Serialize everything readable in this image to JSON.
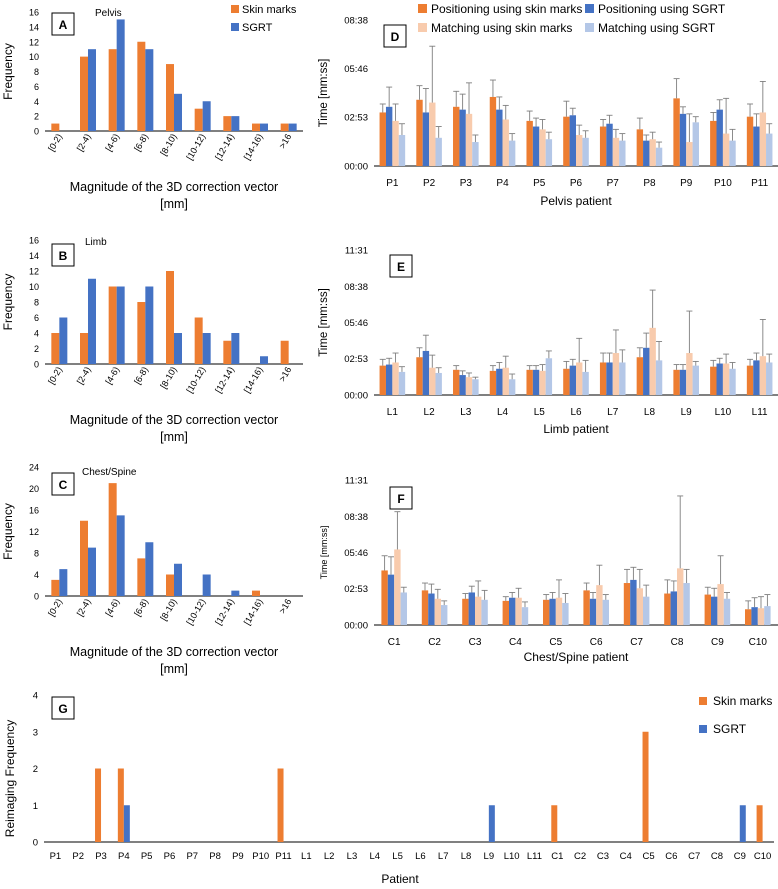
{
  "colors": {
    "orange": "#ED7D31",
    "blue": "#4472C4",
    "light_orange": "#F8CBAD",
    "light_blue": "#B4C7E7",
    "axis": "#000000",
    "err": "#7F7F7F",
    "grid": "#D9D9D9"
  },
  "hist_categories": [
    "[0-2)",
    "[2-4)",
    "[4-6)",
    "[6-8)",
    "[8-10)",
    "[10-12)",
    "[12-14)",
    "[14-16)",
    ">16"
  ],
  "hist_xlabel_line1": "Magnitude of the 3D correction vector",
  "hist_xlabel_line2": "[mm]",
  "hist_ylabel": "Frequency",
  "hist_legend": {
    "orange": "Skin marks",
    "blue": "SGRT"
  },
  "time_legend": {
    "pos_skin": "Positioning using skin marks",
    "pos_sgrt": "Positioning using SGRT",
    "match_skin": "Matching using skin marks",
    "match_sgrt": "Matching using SGRT"
  },
  "time_ylabel": "Time [mm:ss]",
  "chart_data": [
    {
      "panel": "A",
      "type": "bar",
      "title": "Pelvis",
      "ylim": [
        0,
        16
      ],
      "yticks": [
        0,
        2,
        4,
        6,
        8,
        10,
        12,
        14,
        16
      ],
      "series": [
        {
          "name": "Skin marks",
          "values": [
            1,
            10,
            11,
            12,
            9,
            3,
            2,
            1,
            1
          ]
        },
        {
          "name": "SGRT",
          "values": [
            0,
            11,
            15,
            11,
            5,
            4,
            2,
            1,
            1
          ]
        }
      ]
    },
    {
      "panel": "B",
      "type": "bar",
      "title": "Limb",
      "ylim": [
        0,
        16
      ],
      "yticks": [
        0,
        2,
        4,
        6,
        8,
        10,
        12,
        14,
        16
      ],
      "series": [
        {
          "name": "Skin marks",
          "values": [
            4,
            4,
            10,
            8,
            12,
            6,
            3,
            0,
            3
          ]
        },
        {
          "name": "SGRT",
          "values": [
            6,
            11,
            10,
            10,
            4,
            4,
            4,
            1,
            0
          ]
        }
      ]
    },
    {
      "panel": "C",
      "type": "bar",
      "title": "Chest/Spine",
      "ylim": [
        0,
        24
      ],
      "yticks": [
        0,
        4,
        8,
        12,
        16,
        20,
        24
      ],
      "series": [
        {
          "name": "Skin marks",
          "values": [
            3,
            14,
            21,
            7,
            4,
            0,
            0,
            1,
            0
          ]
        },
        {
          "name": "SGRT",
          "values": [
            5,
            9,
            15,
            10,
            6,
            4,
            1,
            0,
            0
          ]
        }
      ]
    },
    {
      "panel": "D",
      "type": "bar",
      "xlabel": "Pelvis patient",
      "ylim": [
        0,
        518
      ],
      "yticks": [
        {
          "v": 0,
          "label": "00:00"
        },
        {
          "v": 173,
          "label": "02:53"
        },
        {
          "v": 346,
          "label": "05:46"
        },
        {
          "v": 518,
          "label": "08:38"
        }
      ],
      "categories": [
        "P1",
        "P2",
        "P3",
        "P4",
        "P5",
        "P6",
        "P7",
        "P8",
        "P9",
        "P10",
        "P11"
      ],
      "series": [
        {
          "name": "Positioning using skin marks",
          "values": [
            190,
            235,
            210,
            245,
            160,
            175,
            140,
            130,
            240,
            160,
            175
          ],
          "err": [
            30,
            50,
            55,
            60,
            35,
            55,
            25,
            40,
            70,
            30,
            45
          ]
        },
        {
          "name": "Positioning using SGRT",
          "values": [
            210,
            190,
            200,
            200,
            140,
            180,
            150,
            90,
            185,
            200,
            140
          ],
          "err": [
            70,
            85,
            55,
            45,
            30,
            25,
            30,
            20,
            25,
            35,
            45
          ]
        },
        {
          "name": "Matching using skin marks",
          "values": [
            160,
            225,
            185,
            165,
            130,
            110,
            100,
            95,
            85,
            115,
            190
          ],
          "err": [
            60,
            200,
            110,
            50,
            35,
            35,
            30,
            25,
            100,
            125,
            110
          ]
        },
        {
          "name": "Matching using SGRT",
          "values": [
            110,
            100,
            85,
            90,
            95,
            100,
            90,
            65,
            155,
            90,
            115
          ],
          "err": [
            40,
            40,
            25,
            25,
            25,
            25,
            25,
            20,
            20,
            40,
            35
          ]
        }
      ]
    },
    {
      "panel": "E",
      "type": "bar",
      "xlabel": "Limb patient",
      "ylim": [
        0,
        691
      ],
      "yticks": [
        {
          "v": 0,
          "label": "00:00"
        },
        {
          "v": 173,
          "label": "02:53"
        },
        {
          "v": 346,
          "label": "05:46"
        },
        {
          "v": 518,
          "label": "08:38"
        },
        {
          "v": 691,
          "label": "11:31"
        }
      ],
      "categories": [
        "L1",
        "L2",
        "L3",
        "L4",
        "L5",
        "L6",
        "L7",
        "L8",
        "L9",
        "L10",
        "L11"
      ],
      "series": [
        {
          "name": "Positioning using skin marks",
          "values": [
            140,
            180,
            120,
            115,
            120,
            125,
            155,
            180,
            120,
            135,
            140
          ],
          "err": [
            30,
            45,
            20,
            25,
            20,
            35,
            45,
            45,
            25,
            30,
            30
          ]
        },
        {
          "name": "Positioning using SGRT",
          "values": [
            145,
            210,
            95,
            125,
            120,
            140,
            155,
            225,
            120,
            150,
            165
          ],
          "err": [
            30,
            75,
            20,
            30,
            20,
            30,
            45,
            70,
            25,
            25,
            35
          ]
        },
        {
          "name": "Matching using skin marks",
          "values": [
            155,
            130,
            85,
            130,
            115,
            155,
            200,
            320,
            200,
            150,
            185
          ],
          "err": [
            45,
            60,
            20,
            55,
            30,
            115,
            110,
            180,
            200,
            45,
            175
          ]
        },
        {
          "name": "Matching using SGRT",
          "values": [
            110,
            105,
            75,
            75,
            175,
            110,
            155,
            165,
            140,
            125,
            155
          ],
          "err": [
            25,
            25,
            10,
            25,
            35,
            55,
            60,
            90,
            20,
            30,
            40
          ]
        }
      ]
    },
    {
      "panel": "F",
      "type": "bar",
      "xlabel": "Chest/Spine patient",
      "ylim": [
        0,
        691
      ],
      "yticks": [
        {
          "v": 0,
          "label": "00:00"
        },
        {
          "v": 173,
          "label": "02:53"
        },
        {
          "v": 346,
          "label": "05:46"
        },
        {
          "v": 518,
          "label": "08:38"
        },
        {
          "v": 691,
          "label": "11:31"
        }
      ],
      "categories": [
        "C1",
        "C2",
        "C3",
        "C4",
        "C5",
        "C6",
        "C7",
        "C8",
        "C9",
        "C10"
      ],
      "series": [
        {
          "name": "Positioning using skin marks",
          "values": [
            260,
            165,
            125,
            115,
            120,
            165,
            200,
            150,
            145,
            75
          ],
          "err": [
            70,
            35,
            25,
            20,
            25,
            35,
            65,
            65,
            35,
            40
          ]
        },
        {
          "name": "Positioning using SGRT",
          "values": [
            240,
            150,
            155,
            130,
            125,
            125,
            215,
            160,
            135,
            85
          ],
          "err": [
            85,
            45,
            30,
            25,
            30,
            30,
            60,
            50,
            40,
            45
          ]
        },
        {
          "name": "Matching using skin marks",
          "values": [
            360,
            125,
            135,
            130,
            130,
            190,
            175,
            270,
            195,
            80
          ],
          "err": [
            180,
            45,
            75,
            45,
            85,
            95,
            90,
            345,
            135,
            55
          ]
        },
        {
          "name": "Matching using SGRT",
          "values": [
            155,
            95,
            120,
            85,
            105,
            120,
            135,
            200,
            125,
            90
          ],
          "err": [
            25,
            20,
            45,
            25,
            45,
            25,
            55,
            65,
            30,
            55
          ]
        }
      ]
    },
    {
      "panel": "G",
      "type": "bar",
      "xlabel": "Patient",
      "ylabel": "Reimaging  Frequency",
      "ylim": [
        0,
        4
      ],
      "yticks": [
        0,
        1,
        2,
        3,
        4
      ],
      "categories": [
        "P1",
        "P2",
        "P3",
        "P4",
        "P5",
        "P6",
        "P7",
        "P8",
        "P9",
        "P10",
        "P11",
        "L1",
        "L2",
        "L3",
        "L4",
        "L5",
        "L6",
        "L7",
        "L8",
        "L9",
        "L10",
        "L11",
        "C1",
        "C2",
        "C3",
        "C4",
        "C5",
        "C6",
        "C7",
        "C8",
        "C9",
        "C10"
      ],
      "series": [
        {
          "name": "Skin marks",
          "values": [
            0,
            0,
            2,
            2,
            0,
            0,
            0,
            0,
            0,
            0,
            2,
            0,
            0,
            0,
            0,
            0,
            0,
            0,
            0,
            0,
            0,
            0,
            1,
            0,
            0,
            0,
            3,
            0,
            0,
            0,
            0,
            1
          ]
        },
        {
          "name": "SGRT",
          "values": [
            0,
            0,
            0,
            1,
            0,
            0,
            0,
            0,
            0,
            0,
            0,
            0,
            0,
            0,
            0,
            0,
            0,
            0,
            0,
            1,
            0,
            0,
            0,
            0,
            0,
            0,
            0,
            0,
            0,
            0,
            1,
            0
          ]
        }
      ]
    }
  ]
}
